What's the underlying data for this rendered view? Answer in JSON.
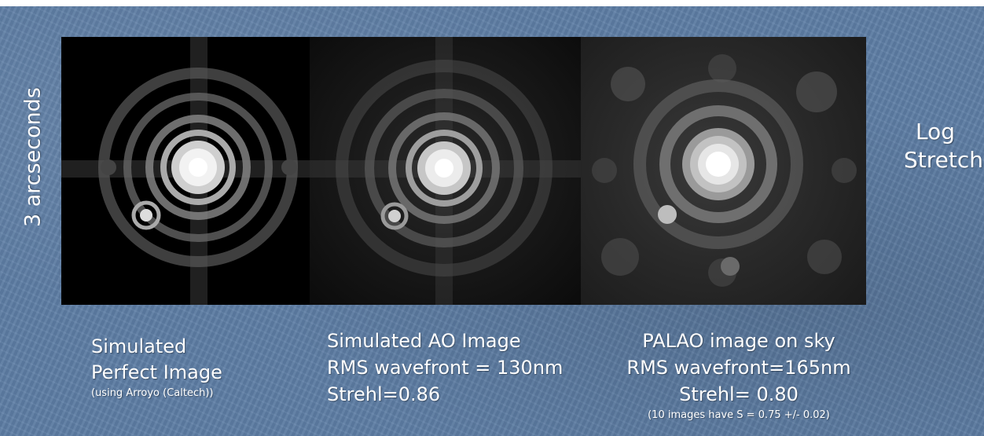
{
  "slide": {
    "vertical_label": "3 arcseconds",
    "stretch_label": [
      "Log",
      "Stretch"
    ]
  },
  "panels": [
    {
      "title_lines": [
        "Simulated",
        "Perfect Image"
      ],
      "note": "(using Arroyo (Caltech))"
    },
    {
      "title_lines": [
        "Simulated AO Image",
        "RMS wavefront = 130nm",
        "Strehl=0.86"
      ],
      "note": ""
    },
    {
      "title_lines": [
        "PALAO image on sky",
        "RMS wavefront=165nm",
        "Strehl= 0.80"
      ],
      "note": "(10 images have S = 0.75 +/- 0.02)"
    }
  ]
}
